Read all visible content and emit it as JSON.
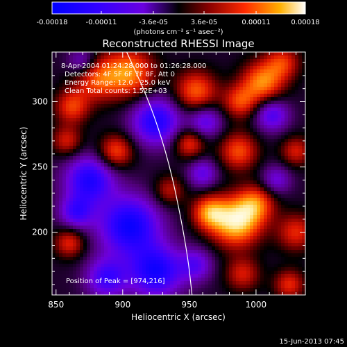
{
  "chart_data": {
    "type": "heatmap",
    "title": "Reconstructed RHESSI Image",
    "xlabel": "Heliocentric X (arcsec)",
    "ylabel": "Heliocentric Y (arcsec)",
    "xlim": [
      847,
      1037
    ],
    "ylim": [
      152,
      338
    ],
    "x_ticks": [
      850,
      900,
      950,
      1000
    ],
    "y_ticks": [
      200,
      250,
      300
    ],
    "colorbar": {
      "min": -0.00018,
      "max": 0.00018,
      "tick_values": [
        -0.00018,
        -0.00011,
        -3.6e-05,
        3.6e-05,
        0.00011,
        0.00018
      ],
      "tick_labels": [
        "-0.00018",
        "-0.00011",
        "-3.6e-05",
        "3.6e-05",
        "0.00011",
        "0.00018"
      ],
      "units": "(photons cm⁻² s⁻¹ asec⁻²)"
    },
    "annotations": [
      "8-Apr-2004 01:24:28.000 to 01:26:28.000",
      "Detectors: 4F 5F 6F 7F 8F, Att 0",
      "Energy Range: 12.0 - 25.0 keV",
      "Clean    Total counts: 1.52E+03"
    ],
    "peak_label": "Position of Peak = [974,216]",
    "peak": [
      974,
      216
    ],
    "limb_curve": [
      [
        903,
        338
      ],
      [
        920,
        300
      ],
      [
        933,
        260
      ],
      [
        942,
        220
      ],
      [
        949,
        180
      ],
      [
        952,
        152
      ]
    ],
    "sources": [
      {
        "x": 985,
        "y": 208,
        "amp": 1.0,
        "s": 13
      },
      {
        "x": 965,
        "y": 215,
        "amp": 0.7,
        "s": 9
      },
      {
        "x": 1000,
        "y": 222,
        "amp": 0.6,
        "s": 10
      },
      {
        "x": 905,
        "y": 322,
        "amp": 0.75,
        "s": 13
      },
      {
        "x": 880,
        "y": 318,
        "amp": 0.6,
        "s": 12
      },
      {
        "x": 955,
        "y": 308,
        "amp": 0.65,
        "s": 11
      },
      {
        "x": 1005,
        "y": 315,
        "amp": 0.75,
        "s": 11
      },
      {
        "x": 1020,
        "y": 330,
        "amp": 0.5,
        "s": 9
      },
      {
        "x": 862,
        "y": 296,
        "amp": 0.55,
        "s": 9
      },
      {
        "x": 858,
        "y": 270,
        "amp": 0.45,
        "s": 8
      },
      {
        "x": 895,
        "y": 262,
        "amp": 0.6,
        "s": 9
      },
      {
        "x": 987,
        "y": 262,
        "amp": 0.6,
        "s": 10
      },
      {
        "x": 988,
        "y": 300,
        "amp": 0.55,
        "s": 9
      },
      {
        "x": 1030,
        "y": 262,
        "amp": 0.45,
        "s": 8
      },
      {
        "x": 860,
        "y": 192,
        "amp": 0.5,
        "s": 8
      },
      {
        "x": 935,
        "y": 232,
        "amp": 0.4,
        "s": 8
      },
      {
        "x": 950,
        "y": 268,
        "amp": 0.55,
        "s": 8
      },
      {
        "x": 1030,
        "y": 200,
        "amp": 0.5,
        "s": 10
      },
      {
        "x": 990,
        "y": 168,
        "amp": 0.45,
        "s": 9
      },
      {
        "x": 1025,
        "y": 160,
        "amp": 0.5,
        "s": 8
      },
      {
        "x": 875,
        "y": 240,
        "amp": -0.75,
        "s": 13
      },
      {
        "x": 905,
        "y": 205,
        "amp": -0.85,
        "s": 16
      },
      {
        "x": 925,
        "y": 170,
        "amp": -0.8,
        "s": 14
      },
      {
        "x": 888,
        "y": 165,
        "amp": -0.6,
        "s": 11
      },
      {
        "x": 925,
        "y": 285,
        "amp": -0.75,
        "s": 13
      },
      {
        "x": 962,
        "y": 285,
        "amp": -0.5,
        "s": 9
      },
      {
        "x": 1012,
        "y": 290,
        "amp": -0.55,
        "s": 9
      },
      {
        "x": 955,
        "y": 175,
        "amp": -0.45,
        "s": 9
      },
      {
        "x": 1015,
        "y": 240,
        "amp": -0.4,
        "s": 8
      },
      {
        "x": 870,
        "y": 330,
        "amp": -0.45,
        "s": 8
      },
      {
        "x": 960,
        "y": 245,
        "amp": -0.45,
        "s": 8
      },
      {
        "x": 865,
        "y": 215,
        "amp": -0.55,
        "s": 9
      }
    ]
  },
  "footer": {
    "timestamp": "15-Jun-2013 07:45"
  }
}
